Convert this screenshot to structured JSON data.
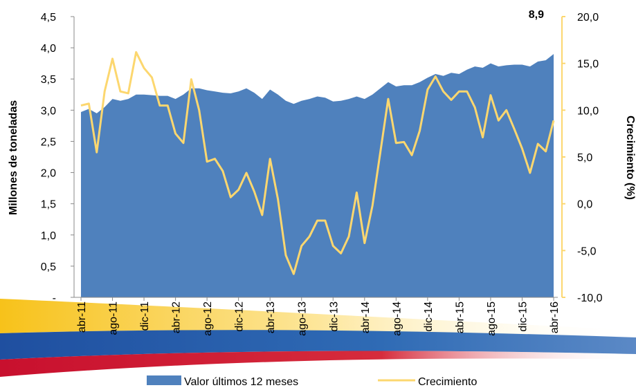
{
  "chart_data": {
    "type": "area-line",
    "categories": [
      "abr-11",
      null,
      null,
      null,
      "ago-11",
      null,
      null,
      null,
      "dic-11",
      null,
      null,
      null,
      "abr-12",
      null,
      null,
      null,
      "ago-12",
      null,
      null,
      null,
      "dic-12",
      null,
      null,
      null,
      "abr-13",
      null,
      null,
      null,
      "ago-13",
      null,
      null,
      null,
      "dic-13",
      null,
      null,
      null,
      "abr-14",
      null,
      null,
      null,
      "ago-14",
      null,
      null,
      null,
      "dic-14",
      null,
      null,
      null,
      "abr-15",
      null,
      null,
      null,
      "ago-15",
      null,
      null,
      null,
      "dic-15",
      null,
      null,
      null,
      "abr-16"
    ],
    "series": [
      {
        "name": "Valor últimos 12 meses",
        "color": "#4f81bd",
        "kind": "area",
        "values": [
          2.97,
          3.02,
          2.95,
          3.05,
          3.18,
          3.15,
          3.18,
          3.25,
          3.25,
          3.24,
          3.23,
          3.23,
          3.18,
          3.25,
          3.35,
          3.35,
          3.32,
          3.3,
          3.28,
          3.27,
          3.3,
          3.35,
          3.28,
          3.18,
          3.33,
          3.25,
          3.15,
          3.1,
          3.15,
          3.18,
          3.22,
          3.2,
          3.14,
          3.15,
          3.18,
          3.22,
          3.18,
          3.25,
          3.35,
          3.45,
          3.38,
          3.4,
          3.4,
          3.45,
          3.52,
          3.58,
          3.55,
          3.6,
          3.58,
          3.65,
          3.7,
          3.68,
          3.75,
          3.7,
          3.72,
          3.73,
          3.73,
          3.7,
          3.78,
          3.8,
          3.9
        ]
      },
      {
        "name": "Crecimiento",
        "color": "#fcd76f",
        "kind": "line",
        "axis": "y2",
        "values": [
          10.5,
          10.7,
          5.5,
          12,
          15.5,
          12,
          11.8,
          16.2,
          14.5,
          13.5,
          10.5,
          10.5,
          7.5,
          6.5,
          13.3,
          10,
          4.5,
          4.8,
          3.5,
          0.7,
          1.5,
          3.3,
          1.3,
          -1.2,
          4.8,
          0.5,
          -5.5,
          -7.5,
          -4.5,
          -3.5,
          -1.8,
          -1.8,
          -4.5,
          -5.3,
          -3.5,
          1.2,
          -4.2,
          -0.2,
          5.5,
          11.2,
          6.5,
          6.6,
          5.2,
          7.8,
          12.2,
          13.6,
          12,
          11.1,
          12,
          12,
          10.3,
          7.1,
          11.6,
          8.9,
          10,
          8,
          5.9,
          3.3,
          6.4,
          5.6,
          8.9
        ]
      }
    ],
    "annotation": "8,9",
    "ylabel": "Millones de toneladas",
    "y2label": "Crecimiento  (%)",
    "ylim": [
      0,
      4.5
    ],
    "yticks": [
      {
        "value": 0,
        "label": "-"
      },
      {
        "value": 0.5,
        "label": "0,5"
      },
      {
        "value": 1,
        "label": "1,0"
      },
      {
        "value": 1.5,
        "label": "1,5"
      },
      {
        "value": 2,
        "label": "2,0"
      },
      {
        "value": 2.5,
        "label": "2,5"
      },
      {
        "value": 3,
        "label": "3,0"
      },
      {
        "value": 3.5,
        "label": "3,5"
      },
      {
        "value": 4,
        "label": "4,0"
      },
      {
        "value": 4.5,
        "label": "4,5"
      }
    ],
    "y2lim": [
      -10,
      20
    ],
    "y2ticks": [
      {
        "value": -10,
        "label": "-10,0"
      },
      {
        "value": -5,
        "label": "-5,0"
      },
      {
        "value": 0,
        "label": "0,0"
      },
      {
        "value": 5,
        "label": "5,0"
      },
      {
        "value": 10,
        "label": "10,0"
      },
      {
        "value": 15,
        "label": "15,0"
      },
      {
        "value": 20,
        "label": "20,0"
      }
    ]
  }
}
